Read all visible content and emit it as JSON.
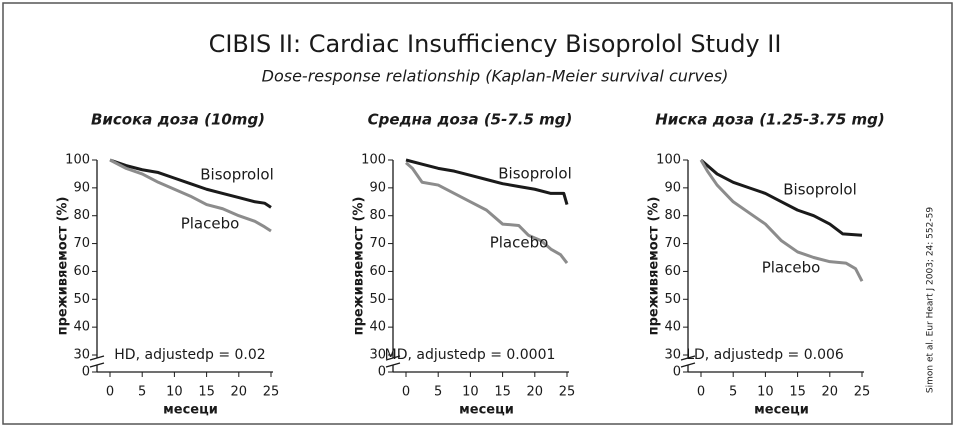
{
  "title": "CIBIS II: Cardiac Insufficiency Bisoprolol Study II",
  "subtitle": "Dose-response relationship (Kaplan-Meier survival curves)",
  "source": "Simon et al. Eur Heart J 2003; 24: 552-59",
  "chart_data": [
    {
      "type": "line",
      "title": "Висока доза (10mg)",
      "xlabel": "месеци",
      "ylabel": "преживяемост (%)",
      "annotation": "HD, adjustedp = 0.02",
      "xlim": [
        0,
        25
      ],
      "xticks": [
        0,
        5,
        10,
        15,
        20,
        25
      ],
      "ylim": [
        0,
        100
      ],
      "ybreak": [
        0,
        30
      ],
      "yticks": [
        0,
        30,
        40,
        50,
        60,
        70,
        80,
        90,
        100
      ],
      "series": [
        {
          "name": "Bisoprolol",
          "color": "#1a1a1a",
          "x": [
            0,
            2.5,
            5,
            7.5,
            10,
            12.5,
            15,
            17.5,
            20,
            22.5,
            24,
            25
          ],
          "values": [
            100,
            98,
            96.5,
            95.5,
            93.5,
            91.5,
            89.5,
            88,
            86.5,
            85,
            84.5,
            83
          ]
        },
        {
          "name": "Placebo",
          "color": "#8c8c8c",
          "x": [
            0,
            2.5,
            5,
            7.5,
            10,
            12.5,
            15,
            17.5,
            20,
            22.5,
            24,
            25
          ],
          "values": [
            100,
            97,
            95,
            92,
            89.5,
            87,
            84,
            82.5,
            80,
            78,
            76,
            74.5
          ]
        }
      ]
    },
    {
      "type": "line",
      "title": "Средна доза (5-7.5 mg)",
      "xlabel": "месеци",
      "ylabel": "преживяемост (%)",
      "annotation": "MD, adjustedp = 0.0001",
      "xlim": [
        0,
        25
      ],
      "xticks": [
        0,
        5,
        10,
        15,
        20,
        25
      ],
      "ylim": [
        0,
        100
      ],
      "ybreak": [
        0,
        30
      ],
      "yticks": [
        0,
        30,
        40,
        50,
        60,
        70,
        80,
        90,
        100
      ],
      "series": [
        {
          "name": "Bisoprolol",
          "color": "#1a1a1a",
          "x": [
            0,
            2.5,
            5,
            7.5,
            10,
            12.5,
            15,
            17.5,
            20,
            22.5,
            24.5,
            25
          ],
          "values": [
            100,
            98.5,
            97,
            96,
            94.5,
            93,
            91.5,
            90.5,
            89.5,
            88,
            88,
            84
          ]
        },
        {
          "name": "Placebo",
          "color": "#8c8c8c",
          "x": [
            0,
            1,
            2.5,
            5,
            7.5,
            10,
            12.5,
            15,
            17.5,
            19,
            21,
            22.5,
            24,
            25
          ],
          "values": [
            99,
            97,
            92,
            91,
            88,
            85,
            82,
            77,
            76.5,
            73,
            71,
            68,
            66,
            63
          ]
        }
      ]
    },
    {
      "type": "line",
      "title": "Ниска доза (1.25-3.75 mg)",
      "xlabel": "месеци",
      "ylabel": "преживяемост (%)",
      "annotation": "LD, adjustedp = 0.006",
      "xlim": [
        0,
        25
      ],
      "xticks": [
        0,
        5,
        10,
        15,
        20,
        25
      ],
      "ylim": [
        0,
        100
      ],
      "ybreak": [
        0,
        30
      ],
      "yticks": [
        0,
        30,
        40,
        50,
        60,
        70,
        80,
        90,
        100
      ],
      "series": [
        {
          "name": "Bisoprolol",
          "color": "#1a1a1a",
          "x": [
            0,
            2.5,
            5,
            7.5,
            10,
            12.5,
            15,
            17.5,
            20,
            22,
            25
          ],
          "values": [
            100,
            95,
            92,
            90,
            88,
            85,
            82,
            80,
            77,
            73.5,
            73
          ]
        },
        {
          "name": "Placebo",
          "color": "#8c8c8c",
          "x": [
            0,
            1,
            2.5,
            5,
            7.5,
            10,
            12.5,
            15,
            17.5,
            20,
            22.5,
            24,
            25
          ],
          "values": [
            100,
            96,
            91,
            85,
            81,
            77,
            71,
            67,
            65,
            63.5,
            63,
            61,
            56.5
          ]
        }
      ]
    }
  ]
}
